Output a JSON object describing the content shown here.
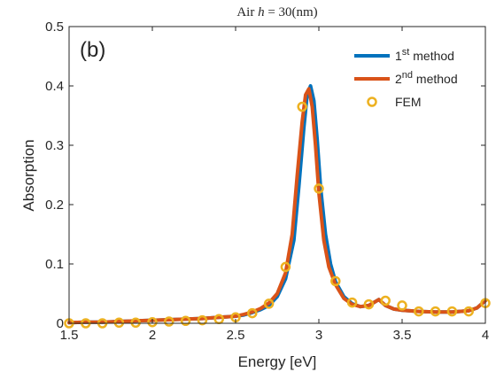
{
  "chart_data": {
    "type": "line",
    "title": "Air h = 30(nm)",
    "panel_label": "(b)",
    "xlabel": "Energy [eV]",
    "ylabel": "Absorption",
    "xlim": [
      1.5,
      4
    ],
    "ylim": [
      0,
      0.5
    ],
    "xticks": [
      "1.5",
      "2",
      "2.5",
      "3",
      "3.5",
      "4"
    ],
    "yticks": [
      "0",
      "0.1",
      "0.2",
      "0.3",
      "0.4",
      "0.5"
    ],
    "grid": false,
    "legend": "top-right",
    "series": [
      {
        "name": "1st method",
        "name_base": "1",
        "name_sup": "st",
        "name_rest": " method",
        "color": "#0072BD",
        "style": "line",
        "x": [
          1.5,
          1.6,
          1.7,
          1.8,
          1.9,
          2.0,
          2.1,
          2.2,
          2.3,
          2.4,
          2.5,
          2.55,
          2.6,
          2.65,
          2.7,
          2.75,
          2.8,
          2.85,
          2.88,
          2.91,
          2.93,
          2.95,
          2.97,
          2.99,
          3.01,
          3.04,
          3.07,
          3.1,
          3.15,
          3.2,
          3.25,
          3.3,
          3.33,
          3.36,
          3.4,
          3.45,
          3.5,
          3.6,
          3.7,
          3.8,
          3.9,
          3.95,
          4.0
        ],
        "y": [
          0.001,
          0.002,
          0.002,
          0.003,
          0.004,
          0.005,
          0.006,
          0.007,
          0.008,
          0.01,
          0.012,
          0.014,
          0.018,
          0.023,
          0.03,
          0.045,
          0.075,
          0.14,
          0.23,
          0.33,
          0.385,
          0.4,
          0.375,
          0.31,
          0.23,
          0.15,
          0.1,
          0.07,
          0.045,
          0.033,
          0.028,
          0.03,
          0.035,
          0.04,
          0.03,
          0.024,
          0.022,
          0.02,
          0.019,
          0.019,
          0.021,
          0.026,
          0.038
        ]
      },
      {
        "name": "2nd method",
        "name_base": "2",
        "name_sup": "nd",
        "name_rest": " method",
        "color": "#D95319",
        "style": "line",
        "x": [
          1.5,
          1.6,
          1.7,
          1.8,
          1.9,
          2.0,
          2.1,
          2.2,
          2.3,
          2.4,
          2.5,
          2.55,
          2.6,
          2.65,
          2.7,
          2.75,
          2.8,
          2.84,
          2.87,
          2.9,
          2.92,
          2.94,
          2.96,
          2.98,
          3.0,
          3.03,
          3.06,
          3.1,
          3.15,
          3.2,
          3.25,
          3.3,
          3.33,
          3.36,
          3.4,
          3.45,
          3.5,
          3.6,
          3.7,
          3.8,
          3.9,
          3.95,
          4.0
        ],
        "y": [
          0.001,
          0.002,
          0.002,
          0.003,
          0.004,
          0.005,
          0.006,
          0.007,
          0.008,
          0.01,
          0.012,
          0.015,
          0.019,
          0.025,
          0.034,
          0.05,
          0.085,
          0.15,
          0.25,
          0.34,
          0.385,
          0.395,
          0.365,
          0.3,
          0.22,
          0.14,
          0.095,
          0.065,
          0.042,
          0.032,
          0.028,
          0.03,
          0.035,
          0.04,
          0.03,
          0.024,
          0.022,
          0.02,
          0.019,
          0.019,
          0.021,
          0.026,
          0.038
        ]
      },
      {
        "name": "FEM",
        "color": "#EDB120",
        "style": "marker",
        "x": [
          1.5,
          1.6,
          1.7,
          1.8,
          1.9,
          2.0,
          2.1,
          2.2,
          2.3,
          2.4,
          2.5,
          2.6,
          2.7,
          2.8,
          2.9,
          3.0,
          3.1,
          3.2,
          3.3,
          3.4,
          3.5,
          3.6,
          3.7,
          3.8,
          3.9,
          4.0
        ],
        "y": [
          0.0,
          0.0,
          0.0,
          0.001,
          0.001,
          0.002,
          0.003,
          0.004,
          0.005,
          0.007,
          0.01,
          0.017,
          0.033,
          0.095,
          0.365,
          0.227,
          0.071,
          0.035,
          0.032,
          0.038,
          0.03,
          0.02,
          0.02,
          0.02,
          0.02,
          0.034
        ]
      }
    ]
  }
}
